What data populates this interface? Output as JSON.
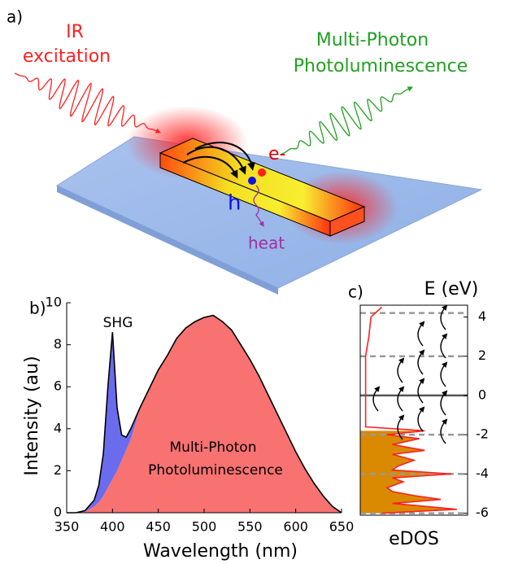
{
  "panel_a": {
    "label": "a)",
    "excitation_lines": [
      "IR",
      "excitation"
    ],
    "emission_lines": [
      "Multi-Photon",
      "Photoluminescence"
    ],
    "electron": "e-",
    "hole": "h",
    "heat": "heat"
  },
  "chart_data": [
    {
      "type": "area",
      "label": "b)",
      "xlabel": "Wavelength (nm)",
      "ylabel": "Intensity (au)",
      "annotations": [
        "SHG",
        "Multi-Photon",
        "Photoluminescence"
      ],
      "x": [
        350,
        360,
        370,
        380,
        385,
        390,
        395,
        400,
        405,
        410,
        415,
        420,
        430,
        440,
        450,
        460,
        470,
        480,
        490,
        500,
        510,
        520,
        530,
        540,
        550,
        560,
        570,
        580,
        590,
        600,
        610,
        620,
        630,
        640,
        650
      ],
      "series": [
        {
          "color": "#f87272",
          "values": [
            0,
            0,
            0.05,
            0.3,
            0.5,
            0.8,
            1.2,
            1.6,
            2.0,
            2.5,
            3.0,
            3.5,
            5.0,
            5.9,
            6.8,
            7.5,
            8.3,
            8.8,
            9.1,
            9.3,
            9.4,
            9.1,
            8.7,
            8.0,
            7.3,
            6.5,
            5.6,
            4.7,
            3.8,
            2.9,
            2.1,
            1.4,
            0.8,
            0.3,
            0
          ]
        },
        {
          "name": "SHG",
          "color": "#6b6bee",
          "values": [
            0,
            0,
            0.05,
            0.3,
            0.8,
            2.0,
            4.8,
            7.0,
            3.0,
            1.2,
            0.6,
            0.5,
            0,
            0,
            0,
            0,
            0,
            0,
            0,
            0,
            0,
            0,
            0,
            0,
            0,
            0,
            0,
            0,
            0,
            0,
            0,
            0,
            0,
            0,
            0
          ]
        }
      ],
      "line_color": "#000000",
      "xlim": [
        350,
        650
      ],
      "xticks": [
        350,
        400,
        450,
        500,
        550,
        600,
        650
      ],
      "ylim": [
        0,
        10
      ],
      "yticks": [
        0,
        2,
        4,
        6,
        8,
        10
      ]
    },
    {
      "type": "dos",
      "label": "c)",
      "ylabel": "E (eV)",
      "xlabel": "eDOS",
      "x": [
        -6,
        -5.8,
        -5.5,
        -5.3,
        -5.1,
        -4.9,
        -4.7,
        -4.4,
        -4.2,
        -4,
        -3.8,
        -3.6,
        -3.3,
        -3,
        -2.8,
        -2.5,
        -2.2,
        -2,
        -1.8,
        -1.6,
        -1,
        0,
        1,
        2,
        3,
        4,
        4.5
      ],
      "values": [
        0.2,
        0.9,
        0.3,
        0.75,
        0.5,
        0.3,
        0.25,
        0.4,
        0.3,
        0.85,
        0.3,
        0.35,
        0.5,
        0.3,
        0.6,
        0.3,
        0.55,
        0.25,
        0.6,
        0.05,
        0.05,
        0.05,
        0.05,
        0.05,
        0.08,
        0.1,
        0.2
      ],
      "color": "#ff2020",
      "fill_color": "#d98a00",
      "fill_below": -1.7,
      "levels": [
        4.2,
        2,
        -2,
        -4,
        -6
      ],
      "fermi": 0,
      "xlim": [
        0,
        1
      ],
      "ylim": [
        -6.1,
        4.6
      ],
      "yticks": [
        -6,
        -4,
        -2,
        0,
        2,
        4
      ]
    }
  ]
}
